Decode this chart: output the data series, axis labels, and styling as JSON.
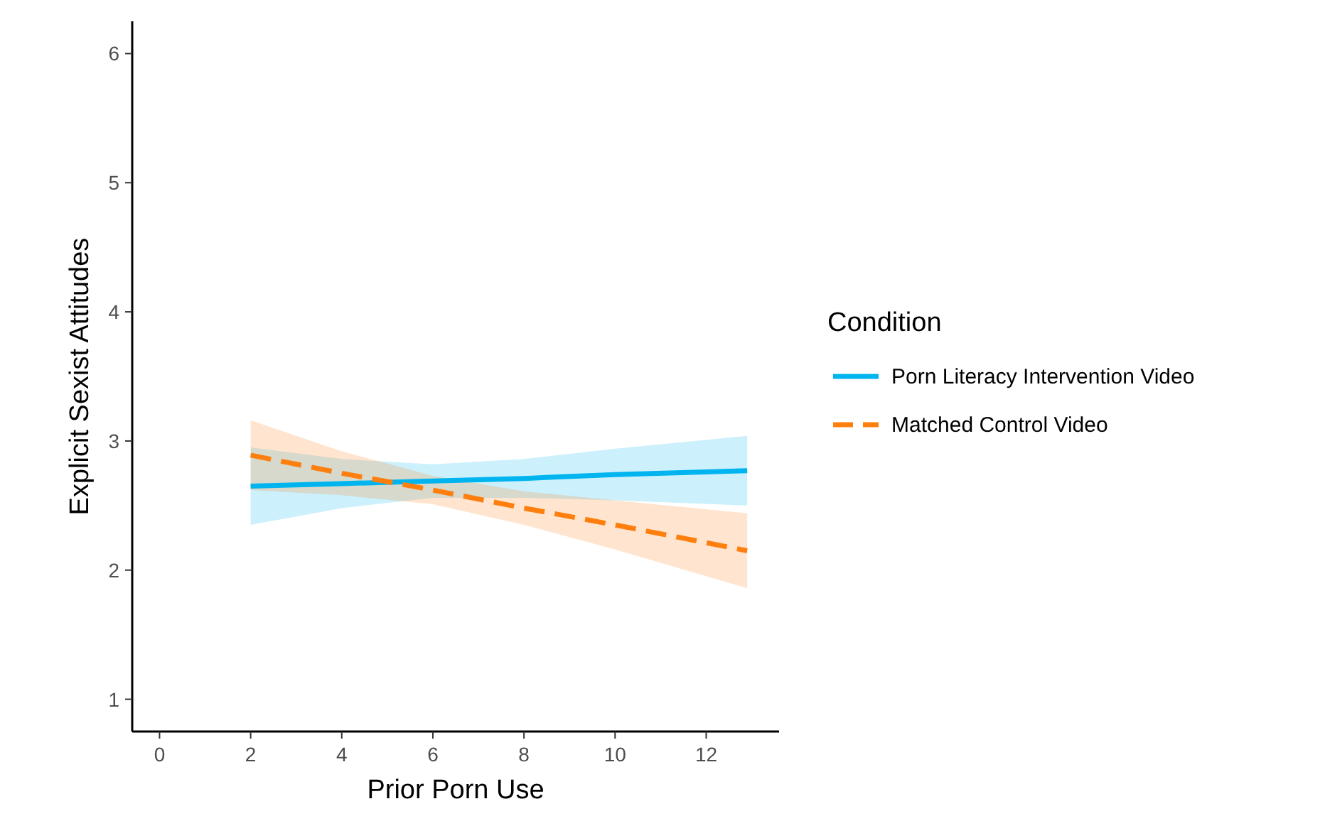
{
  "chart_data": {
    "type": "line",
    "xlabel": "Prior Porn Use",
    "ylabel": "Explicit Sexist Attitudes",
    "legend_title": "Condition",
    "legend": "right",
    "grid": false,
    "xlim": [
      -0.6,
      13.6
    ],
    "xticks": [
      0,
      2,
      4,
      6,
      8,
      10,
      12
    ],
    "ylim": [
      0.75,
      6.25
    ],
    "yticks": [
      1,
      2,
      3,
      4,
      5,
      6
    ],
    "series": [
      {
        "name": "Porn Literacy Intervention Video",
        "color": "#00b4f0",
        "line_style": "solid",
        "x": [
          2,
          4,
          6,
          8,
          10,
          12.9
        ],
        "values": [
          2.65,
          2.67,
          2.69,
          2.71,
          2.74,
          2.77
        ],
        "lower": [
          2.35,
          2.48,
          2.56,
          2.56,
          2.54,
          2.5
        ],
        "upper": [
          2.95,
          2.86,
          2.82,
          2.86,
          2.94,
          3.04
        ]
      },
      {
        "name": "Matched Control Video",
        "color": "#ff7f0e",
        "line_style": "dashed",
        "x": [
          2,
          4,
          6,
          8,
          10,
          12.9
        ],
        "values": [
          2.89,
          2.75,
          2.62,
          2.48,
          2.35,
          2.15
        ],
        "lower": [
          2.62,
          2.58,
          2.51,
          2.35,
          2.16,
          1.86
        ],
        "upper": [
          3.16,
          2.92,
          2.73,
          2.61,
          2.54,
          2.44
        ]
      }
    ]
  }
}
